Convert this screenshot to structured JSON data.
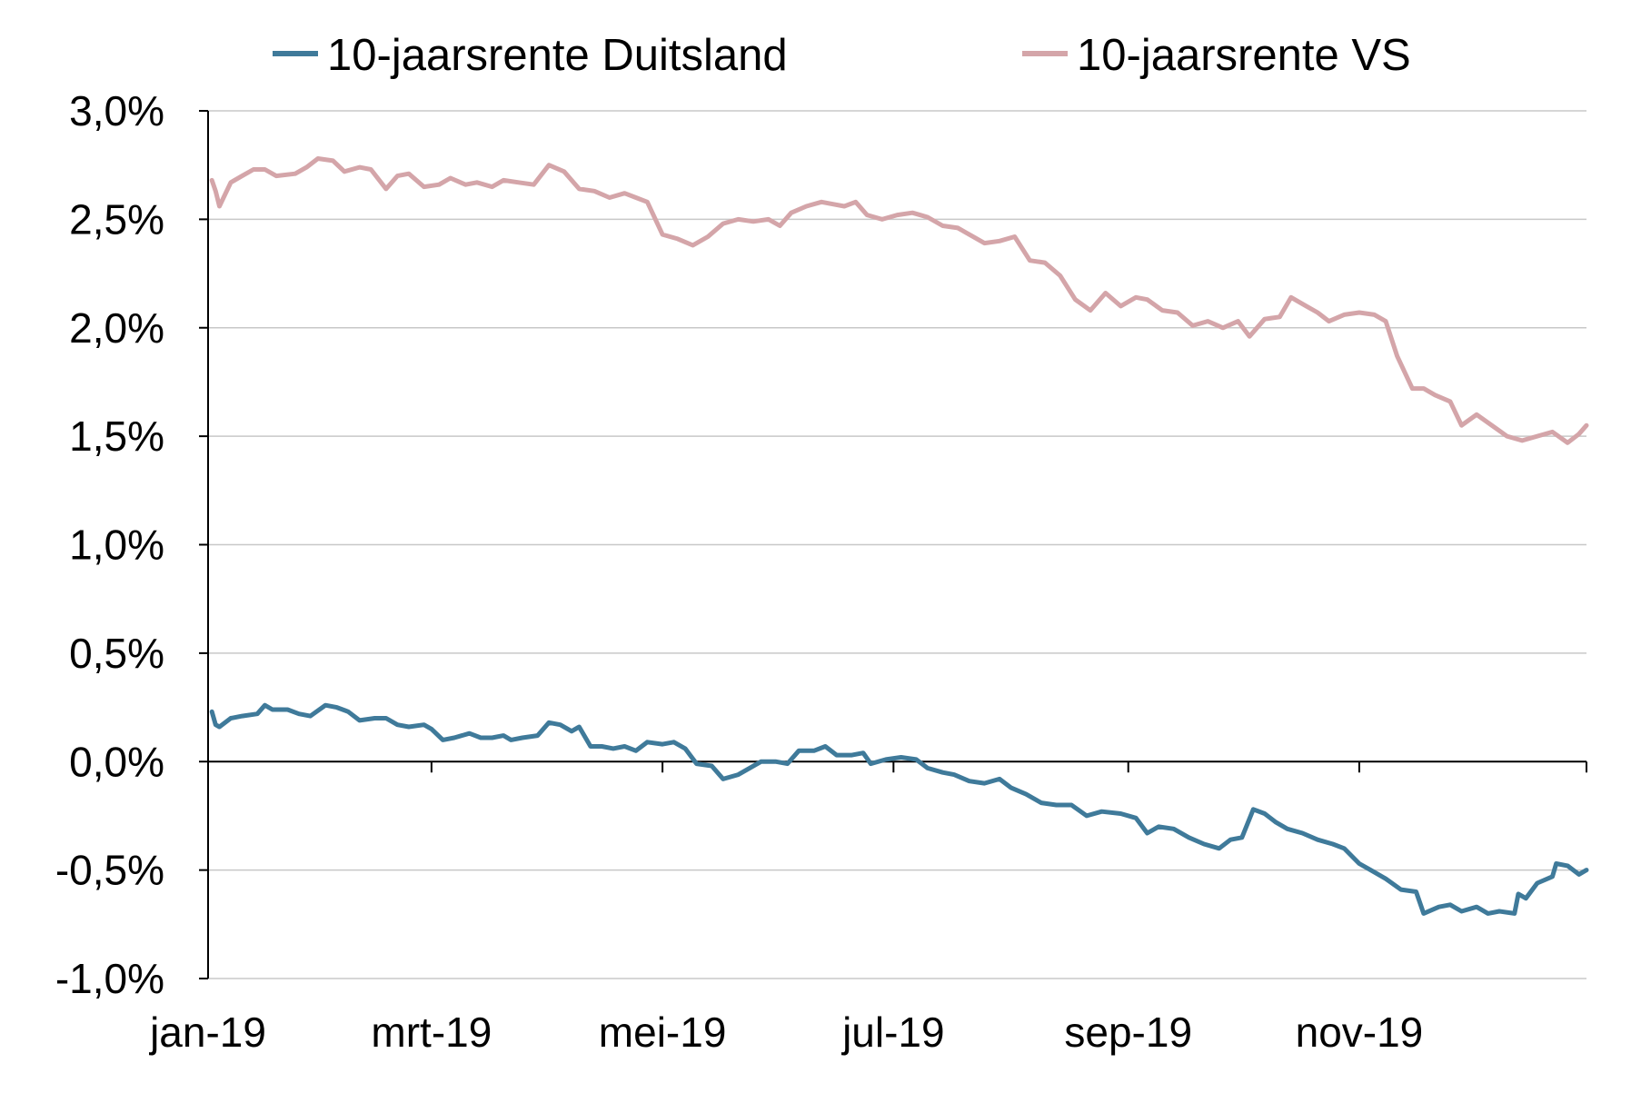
{
  "chart_data": {
    "type": "line",
    "title": "",
    "xlabel": "",
    "ylabel": "",
    "ylim": [
      -1.0,
      3.0
    ],
    "y_tick_values": [
      3.0,
      2.5,
      2.0,
      1.5,
      1.0,
      0.5,
      0.0,
      -0.5,
      -1.0
    ],
    "y_tick_labels": [
      "3,0%",
      "2,5%",
      "2,0%",
      "1,5%",
      "1,0%",
      "0,5%",
      "0,0%",
      "-0,5%",
      "-1,0%"
    ],
    "x_ticks": [
      "2019-01-01",
      "2019-03-01",
      "2019-05-01",
      "2019-07-01",
      "2019-09-01",
      "2019-11-01"
    ],
    "x_tick_labels": [
      "jan-19",
      "mrt-19",
      "mei-19",
      "jul-19",
      "sep-19",
      "nov-19"
    ],
    "xlim": [
      "2019-01-01",
      "2019-12-31"
    ],
    "grid": "horizontal",
    "legend": "top",
    "series": [
      {
        "name": "10-jaarsrente Duitsland",
        "color": "#3f7a9a",
        "points": [
          [
            "2019-01-02",
            0.23
          ],
          [
            "2019-01-03",
            0.17
          ],
          [
            "2019-01-04",
            0.16
          ],
          [
            "2019-01-07",
            0.2
          ],
          [
            "2019-01-10",
            0.21
          ],
          [
            "2019-01-14",
            0.22
          ],
          [
            "2019-01-16",
            0.26
          ],
          [
            "2019-01-18",
            0.24
          ],
          [
            "2019-01-22",
            0.24
          ],
          [
            "2019-01-25",
            0.22
          ],
          [
            "2019-01-28",
            0.21
          ],
          [
            "2019-02-01",
            0.26
          ],
          [
            "2019-02-04",
            0.25
          ],
          [
            "2019-02-07",
            0.23
          ],
          [
            "2019-02-10",
            0.19
          ],
          [
            "2019-02-14",
            0.2
          ],
          [
            "2019-02-17",
            0.2
          ],
          [
            "2019-02-20",
            0.17
          ],
          [
            "2019-02-23",
            0.16
          ],
          [
            "2019-02-27",
            0.17
          ],
          [
            "2019-03-01",
            0.15
          ],
          [
            "2019-03-04",
            0.1
          ],
          [
            "2019-03-07",
            0.11
          ],
          [
            "2019-03-11",
            0.13
          ],
          [
            "2019-03-14",
            0.11
          ],
          [
            "2019-03-17",
            0.11
          ],
          [
            "2019-03-20",
            0.12
          ],
          [
            "2019-03-22",
            0.1
          ],
          [
            "2019-03-25",
            0.11
          ],
          [
            "2019-03-29",
            0.12
          ],
          [
            "2019-04-01",
            0.18
          ],
          [
            "2019-04-04",
            0.17
          ],
          [
            "2019-04-07",
            0.14
          ],
          [
            "2019-04-09",
            0.16
          ],
          [
            "2019-04-12",
            0.07
          ],
          [
            "2019-04-15",
            0.07
          ],
          [
            "2019-04-18",
            0.06
          ],
          [
            "2019-04-21",
            0.07
          ],
          [
            "2019-04-24",
            0.05
          ],
          [
            "2019-04-27",
            0.09
          ],
          [
            "2019-05-01",
            0.08
          ],
          [
            "2019-05-04",
            0.09
          ],
          [
            "2019-05-07",
            0.06
          ],
          [
            "2019-05-10",
            -0.01
          ],
          [
            "2019-05-14",
            -0.02
          ],
          [
            "2019-05-17",
            -0.08
          ],
          [
            "2019-05-21",
            -0.06
          ],
          [
            "2019-05-24",
            -0.03
          ],
          [
            "2019-05-27",
            0.0
          ],
          [
            "2019-05-31",
            0.0
          ],
          [
            "2019-06-03",
            -0.01
          ],
          [
            "2019-06-06",
            0.05
          ],
          [
            "2019-06-10",
            0.05
          ],
          [
            "2019-06-13",
            0.07
          ],
          [
            "2019-06-16",
            0.03
          ],
          [
            "2019-06-20",
            0.03
          ],
          [
            "2019-06-23",
            0.04
          ],
          [
            "2019-06-25",
            -0.01
          ],
          [
            "2019-06-29",
            0.01
          ],
          [
            "2019-07-03",
            0.02
          ],
          [
            "2019-07-07",
            0.01
          ],
          [
            "2019-07-10",
            -0.03
          ],
          [
            "2019-07-14",
            -0.05
          ],
          [
            "2019-07-17",
            -0.06
          ],
          [
            "2019-07-21",
            -0.09
          ],
          [
            "2019-07-25",
            -0.1
          ],
          [
            "2019-07-29",
            -0.08
          ],
          [
            "2019-08-01",
            -0.12
          ],
          [
            "2019-08-05",
            -0.15
          ],
          [
            "2019-08-09",
            -0.19
          ],
          [
            "2019-08-13",
            -0.2
          ],
          [
            "2019-08-17",
            -0.2
          ],
          [
            "2019-08-21",
            -0.25
          ],
          [
            "2019-08-25",
            -0.23
          ],
          [
            "2019-08-30",
            -0.24
          ],
          [
            "2019-09-03",
            -0.26
          ],
          [
            "2019-09-06",
            -0.33
          ],
          [
            "2019-09-09",
            -0.3
          ],
          [
            "2019-09-13",
            -0.31
          ],
          [
            "2019-09-17",
            -0.35
          ],
          [
            "2019-09-21",
            -0.38
          ],
          [
            "2019-09-25",
            -0.4
          ],
          [
            "2019-09-28",
            -0.36
          ],
          [
            "2019-10-01",
            -0.35
          ],
          [
            "2019-10-04",
            -0.22
          ],
          [
            "2019-10-07",
            -0.24
          ],
          [
            "2019-10-10",
            -0.28
          ],
          [
            "2019-10-13",
            -0.31
          ],
          [
            "2019-10-17",
            -0.33
          ],
          [
            "2019-10-21",
            -0.36
          ],
          [
            "2019-10-25",
            -0.38
          ],
          [
            "2019-10-28",
            -0.4
          ],
          [
            "2019-11-01",
            -0.47
          ],
          [
            "2019-11-04",
            -0.5
          ],
          [
            "2019-11-08",
            -0.54
          ],
          [
            "2019-11-12",
            -0.59
          ],
          [
            "2019-11-16",
            -0.6
          ],
          [
            "2019-11-18",
            -0.7
          ],
          [
            "2019-11-22",
            -0.67
          ],
          [
            "2019-11-25",
            -0.66
          ],
          [
            "2019-11-28",
            -0.69
          ],
          [
            "2019-12-02",
            -0.67
          ],
          [
            "2019-12-05",
            -0.7
          ],
          [
            "2019-12-08",
            -0.69
          ],
          [
            "2019-12-12",
            -0.7
          ],
          [
            "2019-12-13",
            -0.61
          ],
          [
            "2019-12-15",
            -0.63
          ],
          [
            "2019-12-18",
            -0.56
          ],
          [
            "2019-12-22",
            -0.53
          ],
          [
            "2019-12-23",
            -0.47
          ],
          [
            "2019-12-26",
            -0.48
          ],
          [
            "2019-12-29",
            -0.52
          ],
          [
            "2019-12-31",
            -0.5
          ]
        ]
      },
      {
        "name": "10-jaarsrente VS",
        "color": "#d4a5a9",
        "points": [
          [
            "2019-01-02",
            2.68
          ],
          [
            "2019-01-03",
            2.63
          ],
          [
            "2019-01-04",
            2.56
          ],
          [
            "2019-01-07",
            2.67
          ],
          [
            "2019-01-10",
            2.7
          ],
          [
            "2019-01-13",
            2.73
          ],
          [
            "2019-01-16",
            2.73
          ],
          [
            "2019-01-19",
            2.7
          ],
          [
            "2019-01-24",
            2.71
          ],
          [
            "2019-01-27",
            2.74
          ],
          [
            "2019-01-30",
            2.78
          ],
          [
            "2019-02-03",
            2.77
          ],
          [
            "2019-02-06",
            2.72
          ],
          [
            "2019-02-10",
            2.74
          ],
          [
            "2019-02-13",
            2.73
          ],
          [
            "2019-02-17",
            2.64
          ],
          [
            "2019-02-20",
            2.7
          ],
          [
            "2019-02-23",
            2.71
          ],
          [
            "2019-02-27",
            2.65
          ],
          [
            "2019-03-03",
            2.66
          ],
          [
            "2019-03-06",
            2.69
          ],
          [
            "2019-03-10",
            2.66
          ],
          [
            "2019-03-13",
            2.67
          ],
          [
            "2019-03-17",
            2.65
          ],
          [
            "2019-03-20",
            2.68
          ],
          [
            "2019-03-24",
            2.67
          ],
          [
            "2019-03-28",
            2.66
          ],
          [
            "2019-04-01",
            2.75
          ],
          [
            "2019-04-05",
            2.72
          ],
          [
            "2019-04-09",
            2.64
          ],
          [
            "2019-04-13",
            2.63
          ],
          [
            "2019-04-17",
            2.6
          ],
          [
            "2019-04-21",
            2.62
          ],
          [
            "2019-04-24",
            2.6
          ],
          [
            "2019-04-27",
            2.58
          ],
          [
            "2019-05-01",
            2.43
          ],
          [
            "2019-05-05",
            2.41
          ],
          [
            "2019-05-09",
            2.38
          ],
          [
            "2019-05-13",
            2.42
          ],
          [
            "2019-05-17",
            2.48
          ],
          [
            "2019-05-21",
            2.5
          ],
          [
            "2019-05-25",
            2.49
          ],
          [
            "2019-05-29",
            2.5
          ],
          [
            "2019-06-01",
            2.47
          ],
          [
            "2019-06-04",
            2.53
          ],
          [
            "2019-06-08",
            2.56
          ],
          [
            "2019-06-12",
            2.58
          ],
          [
            "2019-06-15",
            2.57
          ],
          [
            "2019-06-18",
            2.56
          ],
          [
            "2019-06-21",
            2.58
          ],
          [
            "2019-06-24",
            2.52
          ],
          [
            "2019-06-28",
            2.5
          ],
          [
            "2019-07-02",
            2.52
          ],
          [
            "2019-07-06",
            2.53
          ],
          [
            "2019-07-10",
            2.51
          ],
          [
            "2019-07-14",
            2.47
          ],
          [
            "2019-07-18",
            2.46
          ],
          [
            "2019-07-21",
            2.43
          ],
          [
            "2019-07-25",
            2.39
          ],
          [
            "2019-07-29",
            2.4
          ],
          [
            "2019-08-02",
            2.42
          ],
          [
            "2019-08-06",
            2.31
          ],
          [
            "2019-08-10",
            2.3
          ],
          [
            "2019-08-14",
            2.24
          ],
          [
            "2019-08-18",
            2.13
          ],
          [
            "2019-08-22",
            2.08
          ],
          [
            "2019-08-26",
            2.16
          ],
          [
            "2019-08-30",
            2.1
          ],
          [
            "2019-09-03",
            2.14
          ],
          [
            "2019-09-06",
            2.13
          ],
          [
            "2019-09-10",
            2.08
          ],
          [
            "2019-09-14",
            2.07
          ],
          [
            "2019-09-18",
            2.01
          ],
          [
            "2019-09-22",
            2.03
          ],
          [
            "2019-09-26",
            2.0
          ],
          [
            "2019-09-30",
            2.03
          ],
          [
            "2019-10-03",
            1.96
          ],
          [
            "2019-10-07",
            2.04
          ],
          [
            "2019-10-11",
            2.05
          ],
          [
            "2019-10-14",
            2.14
          ],
          [
            "2019-10-18",
            2.1
          ],
          [
            "2019-10-21",
            2.07
          ],
          [
            "2019-10-24",
            2.03
          ],
          [
            "2019-10-28",
            2.06
          ],
          [
            "2019-11-01",
            2.07
          ],
          [
            "2019-11-05",
            2.06
          ],
          [
            "2019-11-08",
            2.03
          ],
          [
            "2019-11-11",
            1.87
          ],
          [
            "2019-11-15",
            1.72
          ],
          [
            "2019-11-18",
            1.72
          ],
          [
            "2019-11-21",
            1.69
          ],
          [
            "2019-11-25",
            1.66
          ],
          [
            "2019-11-28",
            1.55
          ],
          [
            "2019-12-02",
            1.6
          ],
          [
            "2019-12-06",
            1.55
          ],
          [
            "2019-12-10",
            1.5
          ],
          [
            "2019-12-14",
            1.48
          ],
          [
            "2019-12-18",
            1.5
          ],
          [
            "2019-12-22",
            1.52
          ],
          [
            "2019-12-26",
            1.47
          ],
          [
            "2019-12-29",
            1.51
          ],
          [
            "2019-12-31",
            1.55
          ]
        ]
      }
    ]
  }
}
